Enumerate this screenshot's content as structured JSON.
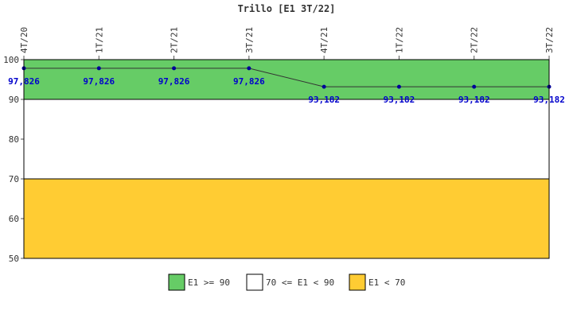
{
  "chart_data": {
    "type": "line",
    "title": "Trillo [E1 3T/22]",
    "categories": [
      "4T/20",
      "1T/21",
      "2T/21",
      "3T/21",
      "4T/21",
      "1T/22",
      "2T/22",
      "3T/22"
    ],
    "series": [
      {
        "values": [
          97.826,
          97.826,
          97.826,
          97.826,
          93.182,
          93.182,
          93.182,
          93.182
        ],
        "labels": [
          "97,826",
          "97,826",
          "97,826",
          "97,826",
          "93,182",
          "93,182",
          "93,182",
          "93,182"
        ]
      }
    ],
    "ylim": [
      50,
      100
    ],
    "yticks": [
      50,
      60,
      70,
      80,
      90,
      100
    ],
    "bands": [
      {
        "label": "E1 >= 90",
        "from": 90,
        "to": 100,
        "color": "#66cc66"
      },
      {
        "label": "70 <= E1 < 90",
        "from": 70,
        "to": 90,
        "color": "#ffffff"
      },
      {
        "label": "E1 < 70",
        "from": 50,
        "to": 70,
        "color": "#ffcc33"
      }
    ],
    "line_color": "#333333",
    "marker_color": "#000099",
    "label_color": "#0000cc",
    "legend_position": "bottom"
  }
}
